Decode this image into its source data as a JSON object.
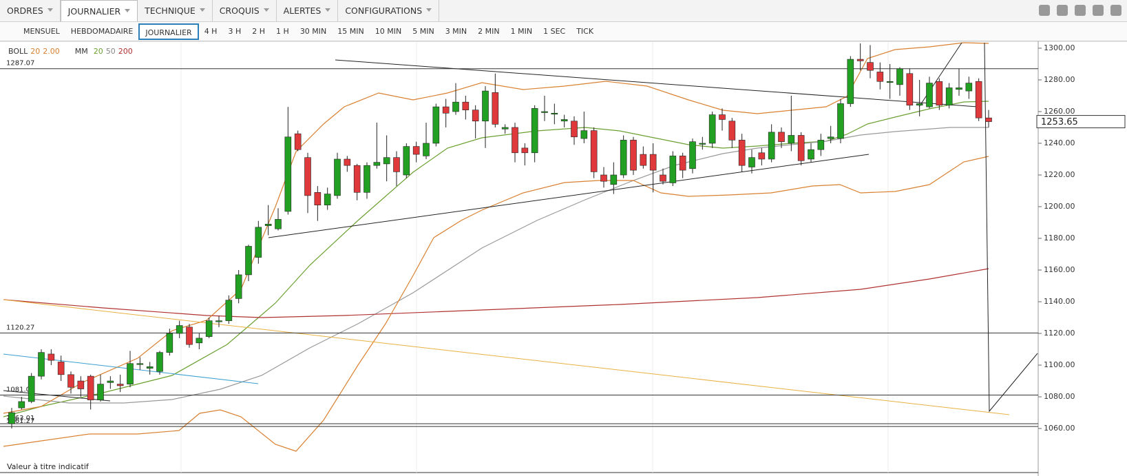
{
  "menu": [
    "ORDRES",
    "JOURNALIER",
    "TECHNIQUE",
    "CROQUIS",
    "ALERTES",
    "CONFIGURATIONS"
  ],
  "menu_selected": 1,
  "timeframes": [
    "MENSUEL",
    "HEBDOMADAIRE",
    "JOURNALIER",
    "4 H",
    "3 H",
    "2 H",
    "1 H",
    "30 MIN",
    "15 MIN",
    "10 MIN",
    "5 MIN",
    "3 MIN",
    "2 MIN",
    "1 MIN",
    "1 SEC",
    "TICK"
  ],
  "timeframe_selected": 2,
  "indicators": {
    "boll": {
      "name": "BOLL",
      "period": 20,
      "width": {
        "value": 2,
        "label": "2.00"
      }
    },
    "mm": {
      "name": "MM",
      "periods": [
        20,
        50,
        200
      ]
    }
  },
  "note": "Valeur à titre indicatif",
  "chart_data": {
    "type": "candlestick",
    "open": [
      1063,
      1073,
      1077,
      1093,
      1107,
      1102,
      1094,
      1090,
      1093,
      1078,
      1089,
      1088,
      1088,
      1101,
      1098,
      1096,
      1108,
      1120,
      1124,
      1114,
      1118,
      1128,
      1128,
      1142,
      1157,
      1168,
      1188,
      1186,
      1197,
      1246,
      1231,
      1209,
      1201,
      1207,
      1230,
      1226,
      1209,
      1226,
      1227,
      1231,
      1220,
      1238,
      1232,
      1240,
      1263,
      1260,
      1266,
      1261,
      1254,
      1272,
      1249,
      1250,
      1237,
      1234,
      1260,
      1259,
      1254,
      1254,
      1243,
      1248,
      1220,
      1214,
      1220,
      1242,
      1233,
      1233,
      1220,
      1215,
      1232,
      1224,
      1240,
      1240,
      1258,
      1254,
      1242,
      1225,
      1234,
      1230,
      1247,
      1240,
      1245,
      1230,
      1236,
      1243,
      1243,
      1265,
      1293,
      1291,
      1285,
      1279,
      1277,
      1284,
      1264,
      1263,
      1279,
      1264,
      1274,
      1273,
      1279,
      1256
    ],
    "high": [
      1073,
      1080,
      1095,
      1110,
      1110,
      1106,
      1096,
      1093,
      1094,
      1094,
      1093,
      1094,
      1109,
      1105,
      1102,
      1109,
      1123,
      1128,
      1126,
      1120,
      1130,
      1131,
      1144,
      1160,
      1176,
      1191,
      1201,
      1199,
      1263,
      1248,
      1234,
      1213,
      1212,
      1234,
      1232,
      1227,
      1228,
      1253,
      1245,
      1235,
      1240,
      1241,
      1253,
      1265,
      1268,
      1278,
      1270,
      1264,
      1276,
      1284,
      1252,
      1253,
      1240,
      1264,
      1270,
      1265,
      1258,
      1257,
      1260,
      1250,
      1225,
      1228,
      1245,
      1244,
      1238,
      1240,
      1224,
      1235,
      1234,
      1243,
      1244,
      1260,
      1262,
      1256,
      1246,
      1236,
      1237,
      1252,
      1250,
      1270,
      1247,
      1240,
      1246,
      1251,
      1268,
      1295,
      1303,
      1302,
      1291,
      1290,
      1288,
      1287,
      1280,
      1282,
      1281,
      1278,
      1287,
      1282,
      1281,
      1261
    ],
    "low": [
      1060,
      1072,
      1076,
      1091,
      1100,
      1090,
      1082,
      1080,
      1072,
      1077,
      1085,
      1083,
      1086,
      1097,
      1094,
      1094,
      1106,
      1117,
      1111,
      1110,
      1117,
      1124,
      1126,
      1139,
      1153,
      1164,
      1182,
      1185,
      1195,
      1235,
      1196,
      1191,
      1198,
      1205,
      1222,
      1204,
      1205,
      1224,
      1216,
      1213,
      1218,
      1228,
      1230,
      1238,
      1250,
      1258,
      1255,
      1243,
      1237,
      1250,
      1246,
      1228,
      1226,
      1228,
      1254,
      1252,
      1250,
      1239,
      1240,
      1218,
      1212,
      1208,
      1218,
      1220,
      1224,
      1209,
      1214,
      1213,
      1218,
      1221,
      1236,
      1237,
      1248,
      1237,
      1222,
      1221,
      1226,
      1228,
      1237,
      1235,
      1226,
      1228,
      1232,
      1240,
      1240,
      1263,
      1286,
      1281,
      1274,
      1268,
      1270,
      1261,
      1257,
      1262,
      1261,
      1262,
      1270,
      1268,
      1254,
      1250
    ],
    "close": [
      1070,
      1077,
      1093,
      1108,
      1103,
      1094,
      1086,
      1085,
      1078,
      1088,
      1090,
      1087,
      1101,
      1101,
      1099,
      1108,
      1120,
      1125,
      1113,
      1117,
      1128,
      1128,
      1141,
      1157,
      1175,
      1187,
      1189,
      1192,
      1244,
      1236,
      1207,
      1201,
      1208,
      1230,
      1226,
      1209,
      1226,
      1228,
      1231,
      1222,
      1238,
      1233,
      1240,
      1263,
      1259,
      1266,
      1261,
      1254,
      1273,
      1252,
      1250,
      1234,
      1234,
      1262,
      1260,
      1259,
      1255,
      1244,
      1248,
      1222,
      1216,
      1220,
      1242,
      1223,
      1226,
      1223,
      1216,
      1232,
      1223,
      1241,
      1240,
      1258,
      1255,
      1242,
      1226,
      1231,
      1230,
      1247,
      1241,
      1245,
      1229,
      1236,
      1242,
      1244,
      1265,
      1293,
      1292,
      1286,
      1279,
      1279,
      1287,
      1264,
      1265,
      1278,
      1264,
      1275,
      1275,
      1278,
      1256,
      1253.65
    ],
    "up_color": "#22a022",
    "down_color": "#e0393b",
    "ylim": [
      1043.5,
      1305.2
    ],
    "yticks": [
      {
        "value": 1060,
        "label": "1060.00"
      },
      {
        "value": 1080,
        "label": "1080.00"
      },
      {
        "value": 1100,
        "label": "1100.00"
      },
      {
        "value": 1120,
        "label": "1120.00"
      },
      {
        "value": 1140,
        "label": "1140.00"
      },
      {
        "value": 1160,
        "label": "1160.00"
      },
      {
        "value": 1180,
        "label": "1180.00"
      },
      {
        "value": 1200,
        "label": "1200.00"
      },
      {
        "value": 1220,
        "label": "1220.00"
      },
      {
        "value": 1240,
        "label": "1240.00"
      },
      {
        "value": 1260,
        "label": "1260.00"
      },
      {
        "value": 1280,
        "label": "1280.00"
      },
      {
        "value": 1300,
        "label": "1300.00"
      }
    ],
    "levels": [
      1287.07,
      1120.27,
      1081.08,
      1063.01,
      1061.27
    ],
    "last": 1253.65
  }
}
